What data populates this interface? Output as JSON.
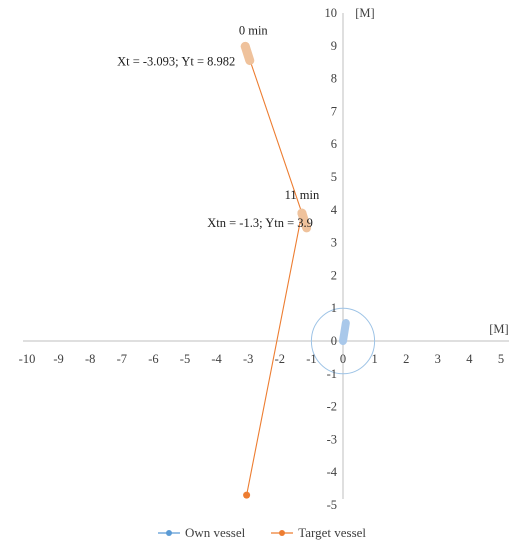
{
  "chart_data": {
    "type": "scatter",
    "title": "",
    "xlabel": "[M]",
    "ylabel": "[M]",
    "xlim": [
      -10,
      5
    ],
    "ylim": [
      -5,
      10
    ],
    "x_ticks": [
      -10,
      -9,
      -8,
      -7,
      -6,
      -5,
      -4,
      -3,
      -2,
      -1,
      0,
      1,
      2,
      3,
      4,
      5
    ],
    "y_ticks": [
      -5,
      -4,
      -3,
      -2,
      -1,
      0,
      1,
      2,
      3,
      4,
      5,
      6,
      7,
      8,
      9,
      10
    ],
    "grid": false,
    "legend_position": "bottom",
    "series": [
      {
        "name": "Own vessel",
        "color": "#5b9bd5",
        "points": [
          {
            "x": 0,
            "y": 0
          },
          {
            "x": 0.09,
            "y": 0.55
          }
        ],
        "marker_trail": [
          {
            "x": 0,
            "y": 0
          },
          {
            "x": 0.09,
            "y": 0.55
          }
        ]
      },
      {
        "name": "Target vessel",
        "color": "#ed7d31",
        "points": [
          {
            "x": -3.093,
            "y": 8.982
          },
          {
            "x": -1.3,
            "y": 3.9
          },
          {
            "x": -3.05,
            "y": -4.7
          }
        ],
        "marker_trails": [
          [
            {
              "x": -3.093,
              "y": 8.982
            },
            {
              "x": -2.95,
              "y": 8.55
            }
          ],
          [
            {
              "x": -1.3,
              "y": 3.9
            },
            {
              "x": -1.15,
              "y": 3.45
            }
          ]
        ]
      }
    ],
    "circle": {
      "center_x": 0,
      "center_y": 0,
      "radius": 1.0,
      "color": "#9dc3e6"
    },
    "annotations": [
      {
        "text": "0 min",
        "x": -3.093,
        "y": 8.982
      },
      {
        "text": "Xt = -3.093; Yt = 8.982",
        "x": -3.093,
        "y": 8.982
      },
      {
        "text": "11 min",
        "x": -1.3,
        "y": 3.9
      },
      {
        "text": "Xtn = -1.3; Ytn =  3.9",
        "x": -1.3,
        "y": 3.9
      }
    ]
  }
}
